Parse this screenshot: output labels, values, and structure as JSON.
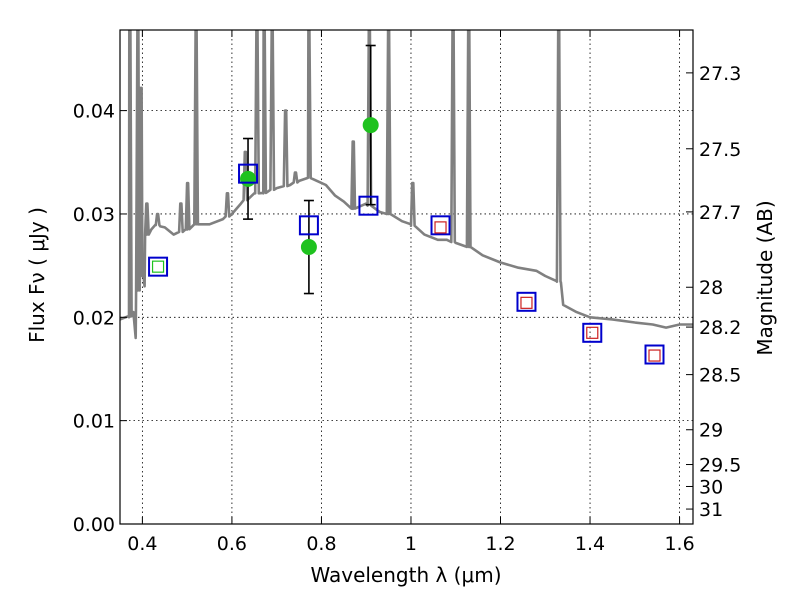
{
  "chart_data": {
    "type": "scatter",
    "xlabel": "Wavelength  λ (μm)",
    "ylabel": "Flux  Fν  ( μJy )",
    "y2label": "Magnitude (AB)",
    "xlim": [
      0.35,
      1.63
    ],
    "ylim": [
      0.0,
      0.0478
    ],
    "x_ticks": [
      0.4,
      0.6,
      0.8,
      1.0,
      1.2,
      1.4,
      1.6
    ],
    "x_tick_labels": [
      "0.4",
      "0.6",
      "0.8",
      "1",
      "1.2",
      "1.4",
      "1.6"
    ],
    "y_ticks": [
      0.0,
      0.01,
      0.02,
      0.03,
      0.04
    ],
    "y_tick_labels": [
      "0.00",
      "0.01",
      "0.02",
      "0.03",
      "0.04"
    ],
    "magnitude_ticks": [
      27.3,
      27.5,
      27.7,
      28.0,
      28.2,
      28.5,
      29.0,
      29.5,
      30.0,
      31.0
    ],
    "magnitude_tick_labels": [
      "27.3",
      "27.5",
      "27.7",
      "28",
      "28.2",
      "28.5",
      "29",
      "29.5",
      "30",
      "31"
    ],
    "grid": true,
    "series": [
      {
        "kind": "line",
        "color": "#808080",
        "x": [
          0.35,
          0.37,
          0.38,
          0.385,
          0.39,
          0.395,
          0.4,
          0.405,
          0.41,
          0.42,
          0.43,
          0.44,
          0.45,
          0.47,
          0.5,
          0.52,
          0.55,
          0.58,
          0.6,
          0.62,
          0.65,
          0.67,
          0.7,
          0.73,
          0.75,
          0.77,
          0.79,
          0.81,
          0.83,
          0.85,
          0.87,
          0.9,
          0.93,
          0.95,
          0.98,
          1.0,
          1.03,
          1.06,
          1.08,
          1.1,
          1.13,
          1.16,
          1.2,
          1.24,
          1.28,
          1.3,
          1.325,
          1.335,
          1.34,
          1.37,
          1.4,
          1.45,
          1.5,
          1.54,
          1.57,
          1.6,
          1.63
        ],
        "y": [
          0.0198,
          0.02,
          0.0205,
          0.018,
          0.0226,
          0.025,
          0.024,
          0.023,
          0.028,
          0.0285,
          0.029,
          0.0288,
          0.0287,
          0.028,
          0.0285,
          0.029,
          0.029,
          0.0295,
          0.03,
          0.031,
          0.032,
          0.032,
          0.0325,
          0.0328,
          0.0332,
          0.0335,
          0.0332,
          0.0328,
          0.0318,
          0.0312,
          0.0305,
          0.031,
          0.0302,
          0.03,
          0.0293,
          0.029,
          0.028,
          0.0275,
          0.0275,
          0.0272,
          0.0268,
          0.026,
          0.0253,
          0.0248,
          0.0245,
          0.024,
          0.0235,
          0.0234,
          0.0212,
          0.0205,
          0.02,
          0.0198,
          0.0195,
          0.0193,
          0.019,
          0.0193,
          0.0193
        ],
        "emission_lines": [
          {
            "x": 0.372,
            "peak": 0.0478
          },
          {
            "x": 0.39,
            "peak": 0.0478
          },
          {
            "x": 0.397,
            "peak": 0.0422
          },
          {
            "x": 0.41,
            "peak": 0.031
          },
          {
            "x": 0.434,
            "peak": 0.03
          },
          {
            "x": 0.486,
            "peak": 0.031
          },
          {
            "x": 0.501,
            "peak": 0.033
          },
          {
            "x": 0.52,
            "peak": 0.0478
          },
          {
            "x": 0.59,
            "peak": 0.032
          },
          {
            "x": 0.63,
            "peak": 0.036
          },
          {
            "x": 0.656,
            "peak": 0.0478
          },
          {
            "x": 0.672,
            "peak": 0.0478
          },
          {
            "x": 0.69,
            "peak": 0.0478
          },
          {
            "x": 0.72,
            "peak": 0.04
          },
          {
            "x": 0.742,
            "peak": 0.034
          },
          {
            "x": 0.772,
            "peak": 0.0478
          },
          {
            "x": 0.871,
            "peak": 0.037
          },
          {
            "x": 0.907,
            "peak": 0.0478
          },
          {
            "x": 0.95,
            "peak": 0.0478
          },
          {
            "x": 1.004,
            "peak": 0.033
          },
          {
            "x": 1.094,
            "peak": 0.0478
          },
          {
            "x": 1.129,
            "peak": 0.0478
          },
          {
            "x": 1.33,
            "peak": 0.0478
          }
        ]
      },
      {
        "kind": "points_errorbar",
        "color": "#1fc21f",
        "points": [
          {
            "x": 0.636,
            "y": 0.0334,
            "yerr": 0.0039
          },
          {
            "x": 0.772,
            "y": 0.0268,
            "yerr": 0.0045
          },
          {
            "x": 0.91,
            "y": 0.0386,
            "yerr": 0.0077
          }
        ]
      },
      {
        "kind": "open_squares_large",
        "color": "#0000cc",
        "points": [
          {
            "x": 0.435,
            "y": 0.0249
          },
          {
            "x": 0.636,
            "y": 0.0339
          },
          {
            "x": 0.772,
            "y": 0.0289
          },
          {
            "x": 0.905,
            "y": 0.0308
          },
          {
            "x": 1.066,
            "y": 0.0289
          },
          {
            "x": 1.258,
            "y": 0.0215
          },
          {
            "x": 1.405,
            "y": 0.0185
          },
          {
            "x": 1.544,
            "y": 0.0164
          }
        ]
      },
      {
        "kind": "open_squares_small",
        "color": "#cc1f1f",
        "points": [
          {
            "x": 1.066,
            "y": 0.0287
          },
          {
            "x": 1.258,
            "y": 0.0214
          },
          {
            "x": 1.405,
            "y": 0.0185
          },
          {
            "x": 1.544,
            "y": 0.0163
          }
        ]
      },
      {
        "kind": "open_squares_small",
        "color": "#1fc21f",
        "points": [
          {
            "x": 0.435,
            "y": 0.0249
          }
        ]
      }
    ]
  }
}
